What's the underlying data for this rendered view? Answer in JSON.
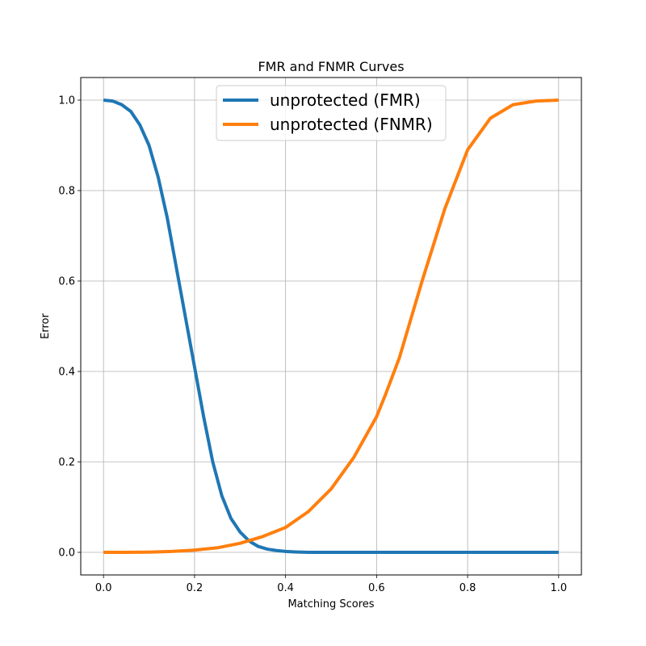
{
  "chart_data": {
    "type": "line",
    "title": "FMR and FNMR Curves",
    "xlabel": "Matching Scores",
    "ylabel": "Error",
    "xlim": [
      -0.05,
      1.05
    ],
    "ylim": [
      -0.05,
      1.05
    ],
    "xticks": [
      0.0,
      0.2,
      0.4,
      0.6,
      0.8,
      1.0
    ],
    "xtick_labels": [
      "0.0",
      "0.2",
      "0.4",
      "0.6",
      "0.8",
      "1.0"
    ],
    "yticks": [
      0.0,
      0.2,
      0.4,
      0.6,
      0.8,
      1.0
    ],
    "ytick_labels": [
      "0.0",
      "0.2",
      "0.4",
      "0.6",
      "0.8",
      "1.0"
    ],
    "grid": true,
    "legend_position": "top-center",
    "series": [
      {
        "name": "unprotected (FMR)",
        "color": "#1f77b4",
        "x": [
          0.0,
          0.02,
          0.04,
          0.06,
          0.08,
          0.1,
          0.12,
          0.14,
          0.16,
          0.18,
          0.2,
          0.22,
          0.24,
          0.26,
          0.28,
          0.3,
          0.32,
          0.34,
          0.36,
          0.38,
          0.4,
          0.42,
          0.45,
          0.5,
          0.6,
          0.7,
          0.8,
          0.9,
          1.0
        ],
        "y": [
          1.0,
          0.998,
          0.99,
          0.975,
          0.945,
          0.9,
          0.83,
          0.74,
          0.63,
          0.52,
          0.41,
          0.3,
          0.2,
          0.125,
          0.075,
          0.045,
          0.025,
          0.013,
          0.007,
          0.004,
          0.002,
          0.001,
          0.0,
          0.0,
          0.0,
          0.0,
          0.0,
          0.0,
          0.0
        ]
      },
      {
        "name": "unprotected (FNMR)",
        "color": "#ff7f0e",
        "x": [
          0.0,
          0.05,
          0.1,
          0.15,
          0.2,
          0.25,
          0.3,
          0.35,
          0.4,
          0.45,
          0.5,
          0.55,
          0.6,
          0.62,
          0.65,
          0.7,
          0.75,
          0.8,
          0.85,
          0.9,
          0.95,
          1.0
        ],
        "y": [
          0.0,
          0.0,
          0.0005,
          0.002,
          0.005,
          0.01,
          0.02,
          0.035,
          0.055,
          0.09,
          0.14,
          0.21,
          0.3,
          0.35,
          0.43,
          0.6,
          0.76,
          0.89,
          0.96,
          0.99,
          0.998,
          1.0
        ]
      }
    ]
  }
}
